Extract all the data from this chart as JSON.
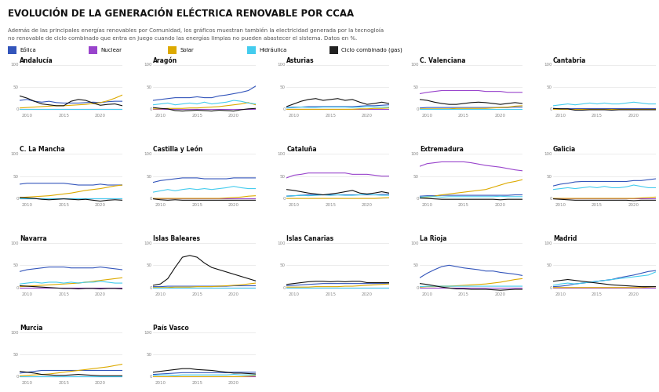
{
  "title": "EVOLUCIÓN DE LA GENERACIÓN ELÉCTRICA RENOVABLE POR CCAA",
  "subtitle1": "Además de las principales energías renovables por Comunidad, los gráficos muestran también la electricidad generada por la tecnogloía",
  "subtitle2": "no renovable de ciclo combinado que entra en juego cuando las energías limpias no pueden abastecer el sistema. Datos en %.",
  "legend": [
    {
      "label": "Eólica",
      "color": "#3355bb"
    },
    {
      "label": "Nuclear",
      "color": "#9944cc"
    },
    {
      "label": "Solar",
      "color": "#ddaa00"
    },
    {
      "label": "Hidráulica",
      "color": "#44ccee"
    },
    {
      "label": "Ciclo combinado (gas)",
      "color": "#222222"
    }
  ],
  "years": [
    2009,
    2010,
    2011,
    2012,
    2013,
    2014,
    2015,
    2016,
    2017,
    2018,
    2019,
    2020,
    2021,
    2022,
    2023
  ],
  "communities": [
    {
      "name": "Andalucía",
      "eolica": [
        20,
        22,
        18,
        16,
        18,
        15,
        14,
        14,
        14,
        15,
        16,
        15,
        17,
        18,
        18
      ],
      "nuclear": [
        0,
        0,
        0,
        0,
        0,
        0,
        0,
        0,
        0,
        0,
        0,
        0,
        0,
        0,
        0
      ],
      "solar": [
        3,
        4,
        5,
        6,
        7,
        8,
        8,
        9,
        10,
        11,
        13,
        15,
        19,
        25,
        32
      ],
      "hidraulica": [
        1,
        1,
        1,
        1,
        1,
        1,
        1,
        1,
        1,
        1,
        1,
        1,
        1,
        1,
        1
      ],
      "gas": [
        30,
        25,
        18,
        12,
        10,
        8,
        8,
        18,
        22,
        20,
        14,
        9,
        11,
        12,
        8
      ]
    },
    {
      "name": "Aragón",
      "eolica": [
        20,
        22,
        24,
        26,
        26,
        26,
        28,
        26,
        26,
        30,
        32,
        35,
        38,
        42,
        52
      ],
      "nuclear": [
        0,
        0,
        0,
        0,
        0,
        0,
        0,
        0,
        0,
        0,
        0,
        0,
        0,
        0,
        0
      ],
      "solar": [
        1,
        1,
        2,
        2,
        2,
        3,
        3,
        4,
        5,
        6,
        8,
        10,
        12,
        15,
        10
      ],
      "hidraulica": [
        10,
        12,
        14,
        10,
        12,
        14,
        12,
        16,
        12,
        14,
        16,
        20,
        18,
        14,
        12
      ],
      "gas": [
        4,
        2,
        1,
        -3,
        -4,
        -3,
        -2,
        -3,
        -4,
        -2,
        -3,
        -4,
        -1,
        1,
        2
      ]
    },
    {
      "name": "Asturias",
      "eolica": [
        4,
        5,
        5,
        6,
        6,
        6,
        6,
        6,
        6,
        6,
        7,
        8,
        8,
        9,
        10
      ],
      "nuclear": [
        0,
        0,
        0,
        0,
        0,
        0,
        0,
        0,
        0,
        0,
        0,
        0,
        0,
        0,
        0
      ],
      "solar": [
        0,
        0,
        0,
        0,
        0,
        0,
        0,
        0,
        0,
        0,
        1,
        1,
        2,
        2,
        3
      ],
      "hidraulica": [
        3,
        4,
        5,
        4,
        4,
        5,
        5,
        5,
        5,
        4,
        5,
        6,
        5,
        5,
        5
      ],
      "gas": [
        6,
        12,
        18,
        22,
        24,
        20,
        22,
        24,
        20,
        22,
        16,
        11,
        13,
        16,
        13
      ]
    },
    {
      "name": "C. Valenciana",
      "eolica": [
        3,
        4,
        4,
        4,
        4,
        4,
        4,
        4,
        4,
        4,
        4,
        4,
        4,
        5,
        5
      ],
      "nuclear": [
        35,
        38,
        40,
        42,
        42,
        42,
        42,
        42,
        42,
        40,
        40,
        40,
        38,
        38,
        38
      ],
      "solar": [
        1,
        1,
        1,
        1,
        1,
        2,
        2,
        2,
        2,
        2,
        3,
        4,
        5,
        7,
        8
      ],
      "hidraulica": [
        1,
        1,
        1,
        1,
        1,
        1,
        1,
        1,
        1,
        1,
        1,
        1,
        1,
        1,
        1
      ],
      "gas": [
        22,
        20,
        16,
        13,
        11,
        11,
        13,
        15,
        16,
        15,
        13,
        11,
        13,
        15,
        13
      ]
    },
    {
      "name": "Cantabria",
      "eolica": [
        2,
        2,
        2,
        2,
        2,
        2,
        2,
        2,
        2,
        2,
        2,
        2,
        2,
        2,
        2
      ],
      "nuclear": [
        0,
        0,
        0,
        0,
        0,
        0,
        0,
        0,
        0,
        0,
        0,
        0,
        0,
        0,
        0
      ],
      "solar": [
        0,
        0,
        0,
        0,
        0,
        0,
        0,
        0,
        0,
        0,
        0,
        0,
        0,
        0,
        0
      ],
      "hidraulica": [
        8,
        10,
        12,
        10,
        12,
        14,
        12,
        14,
        12,
        12,
        14,
        16,
        14,
        12,
        12
      ],
      "gas": [
        2,
        1,
        1,
        -2,
        -2,
        -1,
        -1,
        -1,
        -2,
        -1,
        -1,
        -1,
        -1,
        -1,
        -1
      ]
    },
    {
      "name": "C. La Mancha",
      "eolica": [
        32,
        34,
        34,
        34,
        34,
        34,
        34,
        32,
        30,
        30,
        30,
        32,
        30,
        30,
        30
      ],
      "nuclear": [
        0,
        0,
        0,
        0,
        0,
        0,
        0,
        0,
        0,
        0,
        0,
        0,
        0,
        0,
        0
      ],
      "solar": [
        2,
        3,
        4,
        5,
        6,
        8,
        10,
        12,
        15,
        18,
        20,
        22,
        25,
        28,
        30
      ],
      "hidraulica": [
        1,
        1,
        1,
        1,
        1,
        1,
        1,
        1,
        1,
        1,
        1,
        1,
        1,
        1,
        1
      ],
      "gas": [
        2,
        1,
        0,
        -2,
        -3,
        -2,
        -1,
        -2,
        -3,
        -2,
        -4,
        -6,
        -4,
        -3,
        -4
      ]
    },
    {
      "name": "Castilla y León",
      "eolica": [
        36,
        40,
        42,
        44,
        46,
        46,
        46,
        44,
        44,
        44,
        44,
        46,
        46,
        46,
        46
      ],
      "nuclear": [
        0,
        0,
        0,
        0,
        0,
        0,
        0,
        0,
        0,
        0,
        0,
        0,
        0,
        0,
        0
      ],
      "solar": [
        0,
        0,
        0,
        0,
        0,
        0,
        0,
        0,
        0,
        0,
        1,
        2,
        3,
        5,
        6
      ],
      "hidraulica": [
        14,
        17,
        20,
        17,
        20,
        22,
        20,
        22,
        20,
        22,
        24,
        27,
        24,
        22,
        22
      ],
      "gas": [
        -1,
        -3,
        -4,
        -3,
        -4,
        -4,
        -4,
        -4,
        -4,
        -4,
        -4,
        -4,
        -4,
        -4,
        -4
      ]
    },
    {
      "name": "Cataluña",
      "eolica": [
        5,
        6,
        7,
        8,
        8,
        8,
        8,
        8,
        8,
        8,
        8,
        8,
        8,
        9,
        9
      ],
      "nuclear": [
        46,
        52,
        54,
        57,
        57,
        57,
        57,
        57,
        57,
        54,
        54,
        54,
        52,
        50,
        50
      ],
      "solar": [
        0,
        0,
        0,
        0,
        0,
        0,
        0,
        0,
        0,
        0,
        0,
        0,
        0,
        1,
        2
      ],
      "hidraulica": [
        5,
        6,
        7,
        6,
        7,
        8,
        7,
        8,
        7,
        7,
        8,
        9,
        8,
        7,
        7
      ],
      "gas": [
        20,
        18,
        15,
        12,
        10,
        8,
        10,
        12,
        15,
        18,
        12,
        10,
        12,
        15,
        12
      ]
    },
    {
      "name": "Extremadura",
      "eolica": [
        5,
        6,
        6,
        7,
        7,
        7,
        7,
        7,
        7,
        7,
        7,
        7,
        7,
        8,
        8
      ],
      "nuclear": [
        72,
        78,
        80,
        82,
        82,
        82,
        82,
        80,
        77,
        74,
        72,
        70,
        67,
        64,
        62
      ],
      "solar": [
        2,
        3,
        5,
        8,
        10,
        12,
        14,
        16,
        18,
        20,
        25,
        30,
        35,
        38,
        42
      ],
      "hidraulica": [
        3,
        4,
        4,
        3,
        4,
        4,
        4,
        4,
        4,
        4,
        4,
        5,
        4,
        4,
        4
      ],
      "gas": [
        1,
        0,
        -1,
        -2,
        -2,
        -2,
        -2,
        -2,
        -2,
        -2,
        -2,
        -3,
        -2,
        -2,
        -2
      ]
    },
    {
      "name": "Galicia",
      "eolica": [
        28,
        32,
        34,
        37,
        38,
        38,
        38,
        38,
        38,
        38,
        38,
        40,
        40,
        42,
        44
      ],
      "nuclear": [
        0,
        0,
        0,
        0,
        0,
        0,
        0,
        0,
        0,
        0,
        0,
        0,
        0,
        0,
        0
      ],
      "solar": [
        0,
        0,
        0,
        0,
        0,
        0,
        0,
        0,
        0,
        0,
        0,
        0,
        1,
        2,
        3
      ],
      "hidraulica": [
        20,
        22,
        24,
        22,
        24,
        26,
        24,
        27,
        24,
        24,
        26,
        30,
        27,
        24,
        24
      ],
      "gas": [
        -1,
        -2,
        -3,
        -4,
        -4,
        -4,
        -4,
        -4,
        -4,
        -4,
        -4,
        -5,
        -4,
        -4,
        -4
      ]
    },
    {
      "name": "Navarra",
      "eolica": [
        36,
        40,
        42,
        44,
        46,
        46,
        46,
        44,
        44,
        44,
        44,
        46,
        44,
        42,
        40
      ],
      "nuclear": [
        0,
        0,
        0,
        0,
        0,
        0,
        0,
        0,
        0,
        0,
        0,
        0,
        0,
        0,
        0
      ],
      "solar": [
        2,
        3,
        4,
        5,
        6,
        7,
        8,
        9,
        10,
        12,
        14,
        16,
        18,
        20,
        22
      ],
      "hidraulica": [
        8,
        10,
        12,
        10,
        12,
        12,
        10,
        12,
        10,
        12,
        12,
        14,
        12,
        10,
        10
      ],
      "gas": [
        4,
        3,
        2,
        1,
        0,
        -1,
        -2,
        -2,
        -3,
        -2,
        -2,
        -3,
        -2,
        -2,
        -3
      ]
    },
    {
      "name": "Islas Baleares",
      "eolica": [
        2,
        2,
        3,
        3,
        3,
        3,
        3,
        3,
        3,
        3,
        3,
        4,
        4,
        4,
        4
      ],
      "nuclear": [
        0,
        0,
        0,
        0,
        0,
        0,
        0,
        0,
        0,
        0,
        0,
        0,
        0,
        0,
        0
      ],
      "solar": [
        0,
        0,
        0,
        1,
        1,
        1,
        2,
        2,
        2,
        3,
        4,
        5,
        6,
        8,
        10
      ],
      "hidraulica": [
        0,
        0,
        0,
        0,
        0,
        0,
        0,
        0,
        0,
        0,
        0,
        0,
        0,
        0,
        0
      ],
      "gas": [
        5,
        8,
        20,
        45,
        68,
        72,
        68,
        55,
        45,
        40,
        35,
        30,
        25,
        20,
        15
      ]
    },
    {
      "name": "Islas Canarias",
      "eolica": [
        4,
        5,
        6,
        7,
        8,
        9,
        9,
        9,
        9,
        9,
        9,
        9,
        9,
        9,
        9
      ],
      "nuclear": [
        0,
        0,
        0,
        0,
        0,
        0,
        0,
        0,
        0,
        0,
        0,
        0,
        0,
        0,
        0
      ],
      "solar": [
        1,
        1,
        1,
        1,
        2,
        2,
        2,
        2,
        3,
        3,
        4,
        5,
        6,
        7,
        8
      ],
      "hidraulica": [
        0,
        0,
        0,
        0,
        0,
        0,
        0,
        0,
        0,
        0,
        0,
        0,
        0,
        0,
        0
      ],
      "gas": [
        7,
        9,
        11,
        13,
        14,
        14,
        13,
        14,
        13,
        14,
        14,
        11,
        11,
        11,
        11
      ]
    },
    {
      "name": "La Rioja",
      "eolica": [
        22,
        32,
        40,
        47,
        50,
        47,
        44,
        42,
        40,
        37,
        37,
        34,
        32,
        30,
        27
      ],
      "nuclear": [
        0,
        0,
        0,
        0,
        0,
        0,
        0,
        0,
        0,
        0,
        0,
        0,
        0,
        0,
        0
      ],
      "solar": [
        1,
        2,
        2,
        3,
        3,
        4,
        5,
        6,
        7,
        8,
        10,
        12,
        15,
        18,
        20
      ],
      "hidraulica": [
        2,
        3,
        3,
        3,
        3,
        3,
        3,
        3,
        3,
        3,
        3,
        3,
        3,
        3,
        3
      ],
      "gas": [
        9,
        7,
        4,
        1,
        -1,
        -3,
        -3,
        -4,
        -4,
        -4,
        -5,
        -6,
        -5,
        -4,
        -4
      ]
    },
    {
      "name": "Madrid",
      "eolica": [
        2,
        3,
        5,
        8,
        10,
        12,
        14,
        16,
        18,
        22,
        25,
        28,
        32,
        36,
        38
      ],
      "nuclear": [
        0,
        0,
        0,
        0,
        0,
        0,
        0,
        0,
        0,
        0,
        0,
        0,
        0,
        0,
        0
      ],
      "solar": [
        0,
        0,
        0,
        0,
        0,
        0,
        0,
        0,
        0,
        0,
        0,
        0,
        0,
        1,
        2
      ],
      "hidraulica": [
        5,
        8,
        10,
        8,
        10,
        12,
        14,
        16,
        18,
        20,
        22,
        24,
        26,
        28,
        35
      ],
      "gas": [
        14,
        16,
        18,
        16,
        14,
        12,
        10,
        8,
        6,
        5,
        4,
        3,
        2,
        2,
        2
      ]
    },
    {
      "name": "Murcia",
      "eolica": [
        8,
        10,
        12,
        14,
        14,
        14,
        14,
        14,
        14,
        14,
        14,
        14,
        14,
        14,
        14
      ],
      "nuclear": [
        0,
        0,
        0,
        0,
        0,
        0,
        0,
        0,
        0,
        0,
        0,
        0,
        0,
        0,
        0
      ],
      "solar": [
        2,
        3,
        4,
        5,
        6,
        8,
        10,
        12,
        14,
        16,
        18,
        20,
        22,
        25,
        28
      ],
      "hidraulica": [
        1,
        1,
        1,
        1,
        1,
        1,
        1,
        1,
        1,
        1,
        1,
        1,
        1,
        1,
        1
      ],
      "gas": [
        12,
        10,
        8,
        5,
        4,
        3,
        3,
        4,
        5,
        4,
        3,
        2,
        2,
        2,
        2
      ]
    },
    {
      "name": "País Vasco",
      "eolica": [
        5,
        6,
        7,
        8,
        9,
        9,
        9,
        9,
        9,
        9,
        9,
        10,
        10,
        10,
        10
      ],
      "nuclear": [
        0,
        0,
        0,
        0,
        0,
        0,
        0,
        0,
        0,
        0,
        0,
        0,
        0,
        0,
        0
      ],
      "solar": [
        0,
        0,
        0,
        0,
        0,
        0,
        0,
        0,
        0,
        0,
        0,
        0,
        0,
        1,
        2
      ],
      "hidraulica": [
        3,
        4,
        4,
        3,
        4,
        4,
        4,
        4,
        4,
        4,
        4,
        5,
        4,
        4,
        4
      ],
      "gas": [
        10,
        12,
        14,
        16,
        18,
        18,
        16,
        15,
        14,
        12,
        10,
        8,
        8,
        7,
        6
      ]
    }
  ],
  "colors": {
    "eolica": "#3355bb",
    "nuclear": "#9944cc",
    "solar": "#ddaa00",
    "hidraulica": "#44ccee",
    "gas": "#111111"
  },
  "page_bg": "#ffffff",
  "subplot_bg": "#ffffff",
  "title_color": "#111111",
  "subtitle_color": "#555555",
  "tick_color": "#888888",
  "grid_color": "#dddddd",
  "nrows": 4,
  "ncols": 5,
  "xtick_years": [
    2010,
    2015,
    2020
  ]
}
